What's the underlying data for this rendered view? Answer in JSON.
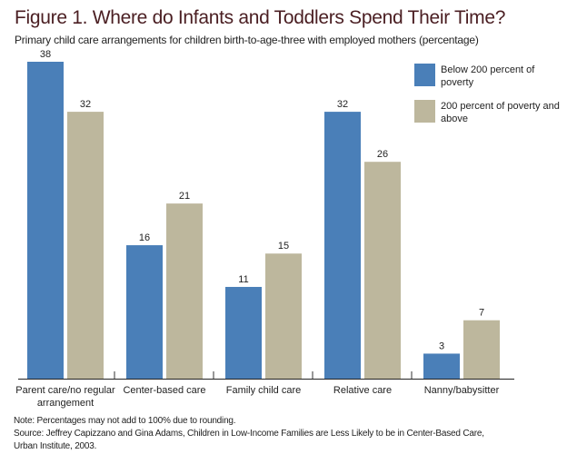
{
  "chart_data": {
    "type": "bar",
    "title": "Figure 1. Where do Infants and Toddlers Spend Their Time?",
    "subtitle": "Primary child care arrangements for children birth-to-age-three with employed mothers (percentage)",
    "categories": [
      [
        "Parent care/no regular",
        "arrangement"
      ],
      [
        "Center-based care"
      ],
      [
        "Family child care"
      ],
      [
        "Relative care"
      ],
      [
        "Nanny/babysitter"
      ]
    ],
    "series": [
      {
        "name": [
          "Below 200 percent of",
          "poverty"
        ],
        "values": [
          38,
          16,
          11,
          32,
          3
        ],
        "color": "#4a7fb8"
      },
      {
        "name": [
          "200 percent of poverty and",
          "above"
        ],
        "values": [
          32,
          21,
          15,
          26,
          7
        ],
        "color": "#bdb79d"
      }
    ],
    "ylim": [
      0,
      38
    ],
    "grid": false,
    "legend": "top-right",
    "xlabel": "",
    "ylabel": ""
  },
  "notes": {
    "note": "Note: Percentages may not add to 100% due to rounding.",
    "source_line1": "Source: Jeffrey Capizzano and Gina Adams, Children in Low-Income Families are Less Likely to be in Center-Based Care,",
    "source_line2": "Urban Institute, 2003."
  }
}
